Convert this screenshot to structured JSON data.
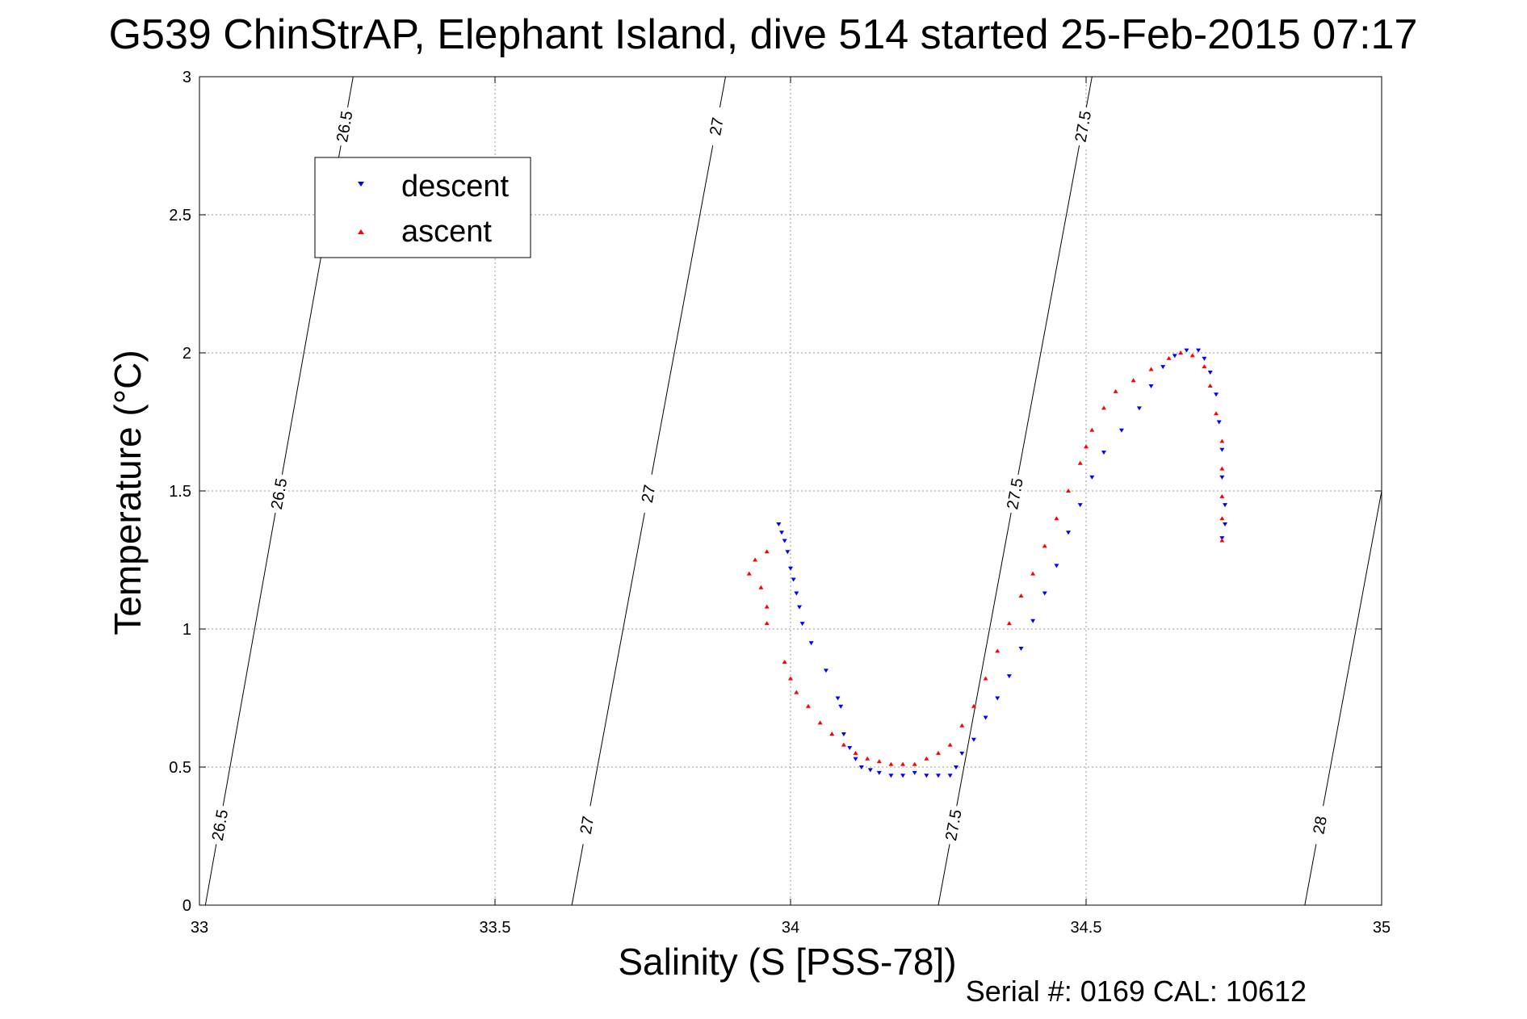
{
  "chart_data": {
    "type": "scatter",
    "title": "G539 ChinStrAP, Elephant Island, dive 514 started 25-Feb-2015 07:17",
    "xlabel": "Salinity (S [PSS-78])",
    "ylabel": "Temperature (°C)",
    "xlim": [
      33,
      35
    ],
    "ylim": [
      0,
      3
    ],
    "xticks": [
      "33",
      "33.5",
      "34",
      "34.5",
      "35"
    ],
    "yticks": [
      "0",
      "0.5",
      "1",
      "1.5",
      "2",
      "2.5",
      "3"
    ],
    "grid": true,
    "legend_position": "top-left",
    "footer": "Serial #: 0169 CAL: 10612",
    "density_contours": [
      {
        "label": "26.5",
        "x_at_t0": 33.01,
        "x_at_t3": 33.26
      },
      {
        "label": "27",
        "x_at_t0": 33.63,
        "x_at_t3": 33.89
      },
      {
        "label": "27.5",
        "x_at_t0": 34.25,
        "x_at_t3": 34.51
      },
      {
        "label": "28",
        "x_at_t0": 34.87,
        "x_at_t3": 35.13
      }
    ],
    "series": [
      {
        "name": "descent",
        "color": "#0000ff",
        "marker": "triangle-down",
        "points": [
          [
            33.98,
            1.38
          ],
          [
            33.985,
            1.35
          ],
          [
            33.99,
            1.32
          ],
          [
            33.995,
            1.28
          ],
          [
            34.0,
            1.22
          ],
          [
            34.005,
            1.18
          ],
          [
            34.01,
            1.13
          ],
          [
            34.015,
            1.08
          ],
          [
            34.02,
            1.02
          ],
          [
            34.035,
            0.95
          ],
          [
            34.06,
            0.85
          ],
          [
            34.08,
            0.75
          ],
          [
            34.085,
            0.72
          ],
          [
            34.09,
            0.62
          ],
          [
            34.1,
            0.57
          ],
          [
            34.11,
            0.53
          ],
          [
            34.12,
            0.5
          ],
          [
            34.135,
            0.49
          ],
          [
            34.15,
            0.48
          ],
          [
            34.17,
            0.47
          ],
          [
            34.19,
            0.47
          ],
          [
            34.21,
            0.48
          ],
          [
            34.23,
            0.47
          ],
          [
            34.25,
            0.47
          ],
          [
            34.27,
            0.47
          ],
          [
            34.28,
            0.5
          ],
          [
            34.29,
            0.55
          ],
          [
            34.31,
            0.6
          ],
          [
            34.33,
            0.68
          ],
          [
            34.35,
            0.75
          ],
          [
            34.37,
            0.83
          ],
          [
            34.39,
            0.93
          ],
          [
            34.41,
            1.03
          ],
          [
            34.43,
            1.13
          ],
          [
            34.45,
            1.23
          ],
          [
            34.47,
            1.35
          ],
          [
            34.49,
            1.45
          ],
          [
            34.51,
            1.55
          ],
          [
            34.53,
            1.64
          ],
          [
            34.56,
            1.72
          ],
          [
            34.59,
            1.8
          ],
          [
            34.61,
            1.88
          ],
          [
            34.63,
            1.95
          ],
          [
            34.65,
            1.99
          ],
          [
            34.67,
            2.01
          ],
          [
            34.69,
            2.01
          ],
          [
            34.7,
            1.98
          ],
          [
            34.71,
            1.93
          ],
          [
            34.72,
            1.85
          ],
          [
            34.725,
            1.75
          ],
          [
            34.73,
            1.65
          ],
          [
            34.73,
            1.55
          ],
          [
            34.735,
            1.45
          ],
          [
            34.735,
            1.38
          ],
          [
            34.73,
            1.33
          ]
        ]
      },
      {
        "name": "ascent",
        "color": "#ff0000",
        "marker": "triangle-up",
        "points": [
          [
            33.96,
            1.28
          ],
          [
            33.94,
            1.25
          ],
          [
            33.93,
            1.2
          ],
          [
            33.95,
            1.15
          ],
          [
            33.96,
            1.08
          ],
          [
            33.96,
            1.02
          ],
          [
            33.99,
            0.88
          ],
          [
            34.0,
            0.82
          ],
          [
            34.01,
            0.77
          ],
          [
            34.03,
            0.72
          ],
          [
            34.05,
            0.66
          ],
          [
            34.07,
            0.62
          ],
          [
            34.09,
            0.58
          ],
          [
            34.11,
            0.55
          ],
          [
            34.13,
            0.53
          ],
          [
            34.15,
            0.52
          ],
          [
            34.17,
            0.51
          ],
          [
            34.19,
            0.51
          ],
          [
            34.21,
            0.51
          ],
          [
            34.23,
            0.53
          ],
          [
            34.25,
            0.55
          ],
          [
            34.27,
            0.58
          ],
          [
            34.29,
            0.65
          ],
          [
            34.31,
            0.72
          ],
          [
            34.33,
            0.82
          ],
          [
            34.35,
            0.92
          ],
          [
            34.37,
            1.02
          ],
          [
            34.39,
            1.12
          ],
          [
            34.41,
            1.2
          ],
          [
            34.43,
            1.3
          ],
          [
            34.45,
            1.4
          ],
          [
            34.47,
            1.5
          ],
          [
            34.49,
            1.6
          ],
          [
            34.5,
            1.66
          ],
          [
            34.51,
            1.72
          ],
          [
            34.53,
            1.8
          ],
          [
            34.55,
            1.86
          ],
          [
            34.58,
            1.9
          ],
          [
            34.61,
            1.94
          ],
          [
            34.64,
            1.98
          ],
          [
            34.66,
            2.0
          ],
          [
            34.68,
            1.99
          ],
          [
            34.7,
            1.95
          ],
          [
            34.71,
            1.88
          ],
          [
            34.72,
            1.78
          ],
          [
            34.73,
            1.68
          ],
          [
            34.73,
            1.58
          ],
          [
            34.73,
            1.48
          ],
          [
            34.73,
            1.4
          ],
          [
            34.73,
            1.32
          ]
        ]
      }
    ]
  }
}
